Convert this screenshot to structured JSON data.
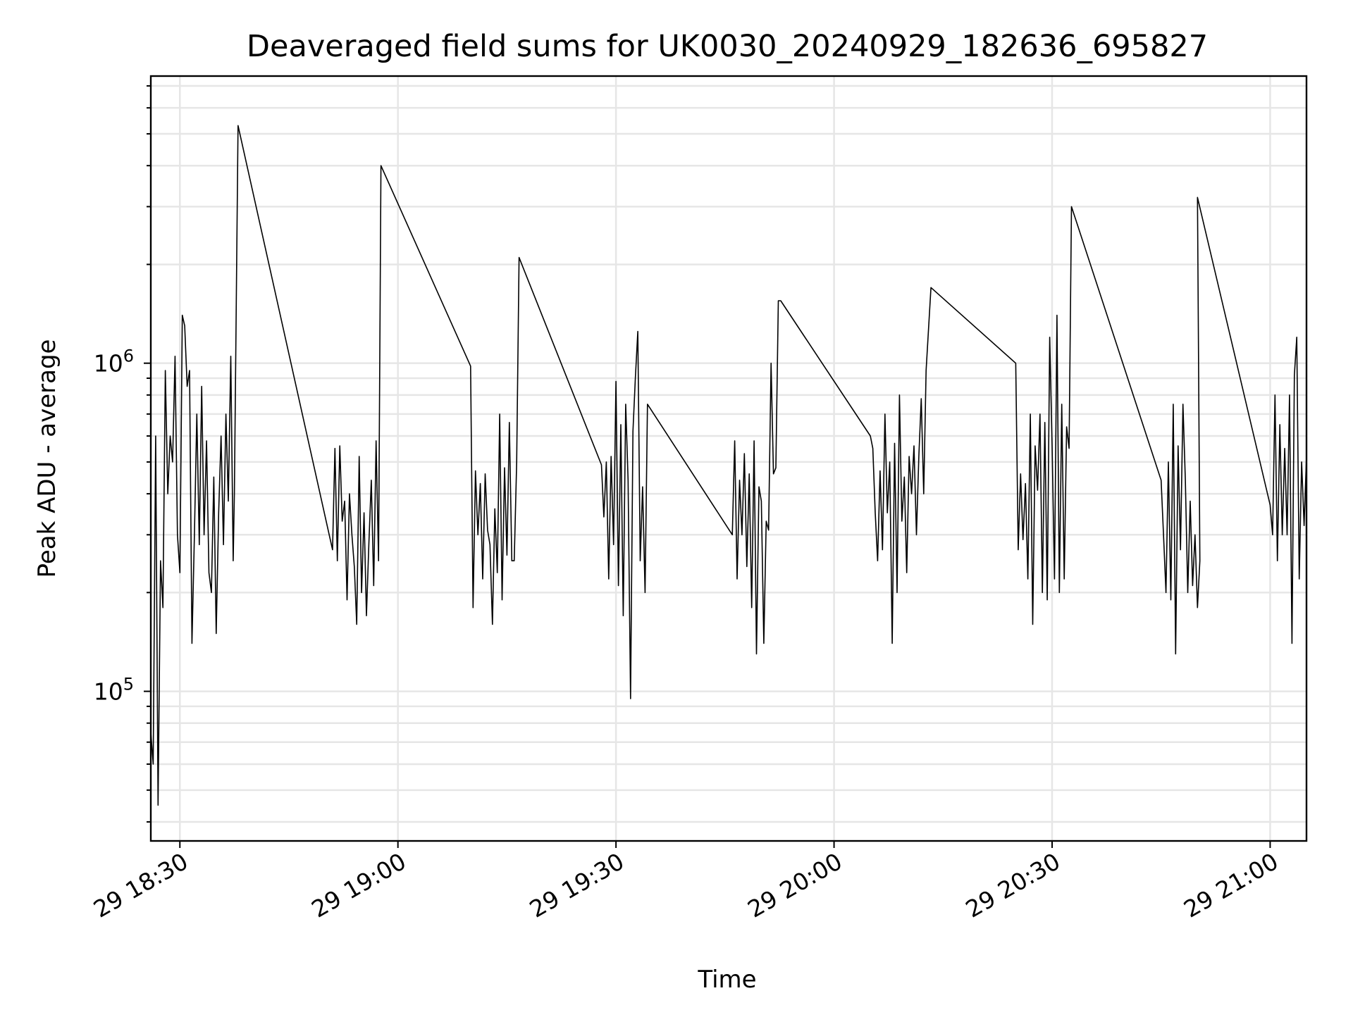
{
  "chart_data": {
    "type": "line",
    "title": "Deaveraged field sums for UK0030_20240929_182636_695827",
    "xlabel": "Time",
    "ylabel": "Peak ADU - average",
    "yscale": "log",
    "grid": true,
    "x_range": [
      "2024-09-29 18:26:00",
      "2024-09-29 21:05:00"
    ],
    "ylim": [
      35000,
      7500000
    ],
    "x_ticks": [
      {
        "value": "2024-09-29 18:30:00",
        "label": "29 18:30"
      },
      {
        "value": "2024-09-29 19:00:00",
        "label": "29 19:00"
      },
      {
        "value": "2024-09-29 19:30:00",
        "label": "29 19:30"
      },
      {
        "value": "2024-09-29 20:00:00",
        "label": "29 20:00"
      },
      {
        "value": "2024-09-29 20:30:00",
        "label": "29 20:30"
      },
      {
        "value": "2024-09-29 21:00:00",
        "label": "29 21:00"
      }
    ],
    "y_ticks": [
      {
        "value": 100000,
        "base": "10",
        "exp": "5"
      },
      {
        "value": 1000000,
        "base": "10",
        "exp": "6"
      }
    ],
    "colors": {
      "line": "#000000",
      "grid": "#e6e6e6"
    },
    "series": [
      {
        "x": [
          "18:26:00",
          "18:26:20",
          "18:26:40",
          "18:27:00",
          "18:27:20",
          "18:27:40",
          "18:28:00",
          "18:28:20",
          "18:28:40",
          "18:29:00",
          "18:29:20",
          "18:29:40",
          "18:30:00",
          "18:30:20",
          "18:30:40",
          "18:31:00",
          "18:31:20",
          "18:31:40",
          "18:32:00",
          "18:32:20",
          "18:32:40",
          "18:33:00",
          "18:33:20",
          "18:33:40",
          "18:34:00",
          "18:34:20",
          "18:34:40",
          "18:35:00",
          "18:35:20",
          "18:35:40",
          "18:36:00",
          "18:36:20",
          "18:36:40",
          "18:37:00",
          "18:37:20",
          "18:37:30",
          "18:38:00",
          "18:51:00",
          "18:51:20",
          "18:51:40",
          "18:52:00",
          "18:52:20",
          "18:52:40",
          "18:53:00",
          "18:53:20",
          "18:53:40",
          "18:54:00",
          "18:54:20",
          "18:54:40",
          "18:55:00",
          "18:55:20",
          "18:55:40",
          "18:56:00",
          "18:56:20",
          "18:56:40",
          "18:57:00",
          "18:57:20",
          "18:57:40",
          "19:10:00",
          "19:10:20",
          "19:10:40",
          "19:11:00",
          "19:11:20",
          "19:11:40",
          "19:12:00",
          "19:12:20",
          "19:12:40",
          "19:13:00",
          "19:13:20",
          "19:13:40",
          "19:14:00",
          "19:14:20",
          "19:14:40",
          "19:15:00",
          "19:15:20",
          "19:15:40",
          "19:16:00",
          "19:16:20",
          "19:16:40",
          "19:28:00",
          "19:28:20",
          "19:28:40",
          "19:29:00",
          "19:29:20",
          "19:29:40",
          "19:30:00",
          "19:30:20",
          "19:30:40",
          "19:31:00",
          "19:31:20",
          "19:31:40",
          "19:32:00",
          "19:32:20",
          "19:32:40",
          "19:33:00",
          "19:33:20",
          "19:33:40",
          "19:34:00",
          "19:34:20",
          "19:46:00",
          "19:46:20",
          "19:46:40",
          "19:47:00",
          "19:47:20",
          "19:47:40",
          "19:48:00",
          "19:48:20",
          "19:48:40",
          "19:49:00",
          "19:49:20",
          "19:49:40",
          "19:50:00",
          "19:50:20",
          "19:50:40",
          "19:51:00",
          "19:51:20",
          "19:51:40",
          "19:52:00",
          "19:52:20",
          "19:52:40",
          "20:05:00",
          "20:05:20",
          "20:05:40",
          "20:06:00",
          "20:06:20",
          "20:06:40",
          "20:07:00",
          "20:07:20",
          "20:07:40",
          "20:08:00",
          "20:08:20",
          "20:08:40",
          "20:09:00",
          "20:09:20",
          "20:09:40",
          "20:10:00",
          "20:10:20",
          "20:10:40",
          "20:11:00",
          "20:11:20",
          "20:11:40",
          "20:12:00",
          "20:12:20",
          "20:12:40",
          "20:13:20",
          "20:25:00",
          "20:25:20",
          "20:25:40",
          "20:26:00",
          "20:26:20",
          "20:26:40",
          "20:27:00",
          "20:27:20",
          "20:27:40",
          "20:28:00",
          "20:28:20",
          "20:28:40",
          "20:29:00",
          "20:29:20",
          "20:29:40",
          "20:30:00",
          "20:30:20",
          "20:30:40",
          "20:31:00",
          "20:31:20",
          "20:31:40",
          "20:32:00",
          "20:32:20",
          "20:32:40",
          "20:45:00",
          "20:45:20",
          "20:45:40",
          "20:46:00",
          "20:46:20",
          "20:46:40",
          "20:47:00",
          "20:47:20",
          "20:47:40",
          "20:48:00",
          "20:48:20",
          "20:48:40",
          "20:49:00",
          "20:49:20",
          "20:49:40",
          "20:50:00",
          "20:50:20",
          "20:50:00",
          "21:00:00",
          "21:00:20",
          "21:00:40",
          "21:01:00",
          "21:01:20",
          "21:01:40",
          "21:02:00",
          "21:02:20",
          "21:02:40",
          "21:03:00",
          "21:03:20",
          "21:03:40",
          "21:04:00",
          "21:04:20",
          "21:04:40",
          "21:05:00"
        ],
        "y": [
          75000,
          60000,
          600000,
          45000,
          250000,
          180000,
          950000,
          400000,
          600000,
          500000,
          1050000,
          300000,
          230000,
          1400000,
          1300000,
          850000,
          950000,
          140000,
          300000,
          700000,
          280000,
          850000,
          300000,
          580000,
          230000,
          200000,
          450000,
          150000,
          350000,
          600000,
          280000,
          700000,
          380000,
          1050000,
          250000,
          400000,
          5300000,
          270000,
          550000,
          250000,
          560000,
          330000,
          380000,
          190000,
          400000,
          300000,
          240000,
          160000,
          520000,
          200000,
          350000,
          170000,
          280000,
          440000,
          210000,
          580000,
          250000,
          4000000,
          980000,
          180000,
          470000,
          300000,
          430000,
          220000,
          460000,
          310000,
          280000,
          160000,
          360000,
          230000,
          700000,
          190000,
          480000,
          260000,
          660000,
          250000,
          250000,
          500000,
          2100000,
          490000,
          340000,
          500000,
          220000,
          520000,
          280000,
          880000,
          210000,
          650000,
          170000,
          750000,
          440000,
          95000,
          620000,
          900000,
          1250000,
          250000,
          420000,
          200000,
          750000,
          300000,
          580000,
          220000,
          440000,
          300000,
          530000,
          240000,
          460000,
          180000,
          580000,
          130000,
          420000,
          380000,
          140000,
          330000,
          310000,
          1000000,
          460000,
          480000,
          1550000,
          1550000,
          600000,
          550000,
          350000,
          250000,
          470000,
          270000,
          700000,
          350000,
          500000,
          140000,
          570000,
          200000,
          800000,
          330000,
          450000,
          230000,
          520000,
          400000,
          560000,
          300000,
          520000,
          780000,
          400000,
          950000,
          1700000,
          1000000,
          270000,
          460000,
          290000,
          430000,
          220000,
          700000,
          160000,
          560000,
          410000,
          700000,
          200000,
          660000,
          190000,
          1200000,
          560000,
          220000,
          1400000,
          200000,
          750000,
          220000,
          640000,
          550000,
          3000000,
          440000,
          300000,
          200000,
          500000,
          190000,
          750000,
          130000,
          560000,
          270000,
          750000,
          440000,
          200000,
          380000,
          210000,
          300000,
          180000,
          250000,
          3200000,
          370000,
          300000,
          800000,
          250000,
          650000,
          300000,
          550000,
          300000,
          800000,
          140000,
          920000,
          1200000,
          220000,
          500000,
          320000,
          520000
        ]
      }
    ]
  }
}
